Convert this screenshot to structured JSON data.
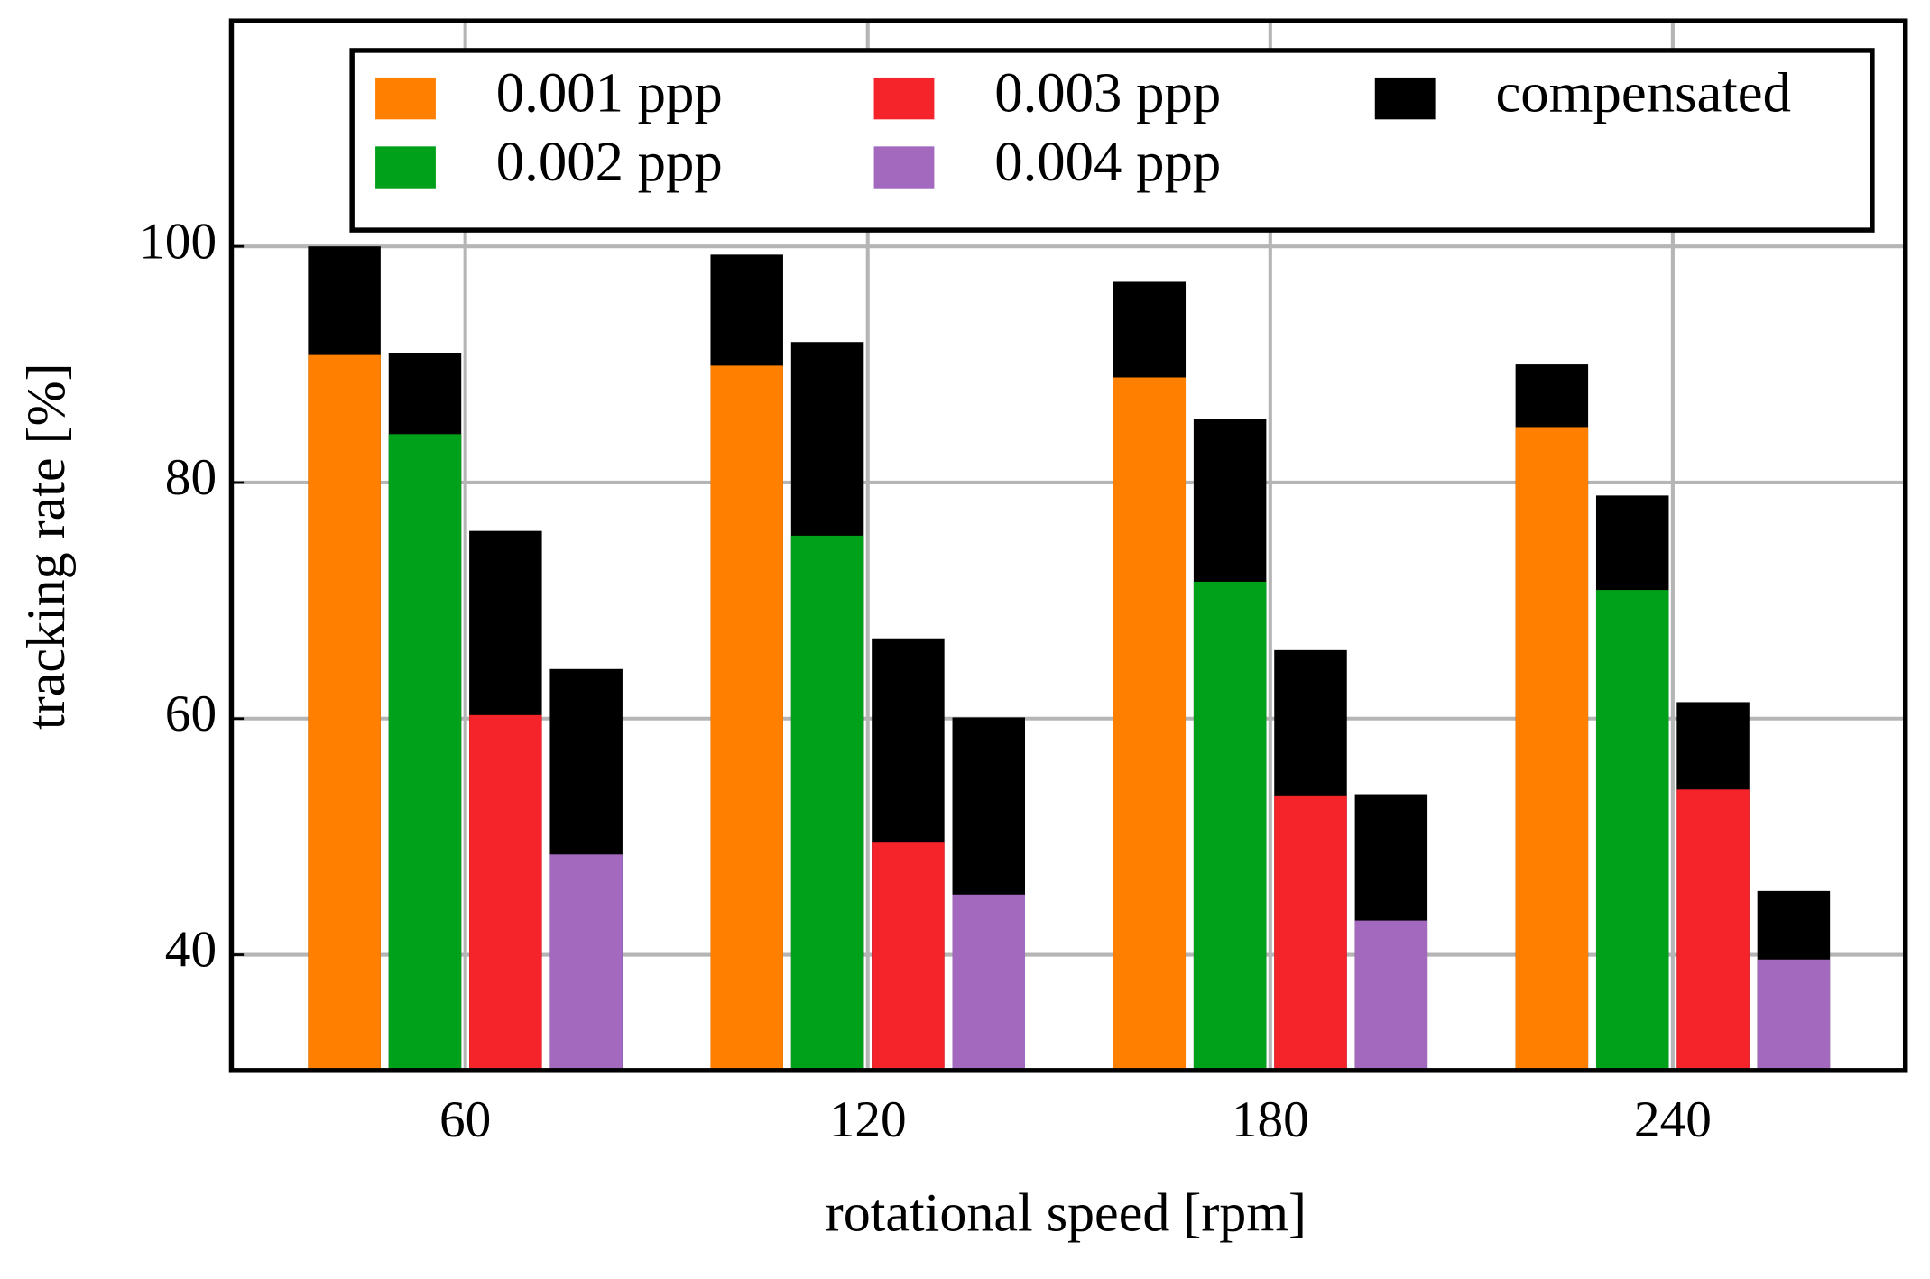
{
  "chart_data": {
    "type": "bar",
    "xlabel": "rotational speed [rpm]",
    "ylabel": "tracking rate [%]",
    "categories": [
      "60",
      "120",
      "180",
      "240"
    ],
    "series": [
      {
        "name": "0.001 ppp",
        "color": "#ff8000",
        "values": [
          90.8,
          89.9,
          88.9,
          84.7
        ],
        "compensated_values": [
          100,
          99.3,
          97.0,
          90.0
        ]
      },
      {
        "name": "0.002 ppp",
        "color": "#00a11a",
        "values": [
          84.1,
          75.5,
          71.6,
          70.9
        ],
        "compensated_values": [
          91.0,
          91.9,
          85.4,
          78.9
        ]
      },
      {
        "name": "0.003 ppp",
        "color": "#f5232a",
        "values": [
          60.3,
          49.5,
          53.5,
          54.0
        ],
        "compensated_values": [
          75.9,
          66.8,
          65.8,
          61.4
        ]
      },
      {
        "name": "0.004 ppp",
        "color": "#a269bf",
        "values": [
          48.5,
          45.1,
          42.9,
          39.6
        ],
        "compensated_values": [
          64.2,
          60.1,
          53.6,
          45.4
        ]
      }
    ],
    "compensated": {
      "name": "compensated",
      "color": "#000000"
    },
    "ylim": [
      30.2,
      119.1
    ],
    "yticks": [
      40,
      60,
      80,
      100
    ],
    "grid": true,
    "legend": "top"
  }
}
